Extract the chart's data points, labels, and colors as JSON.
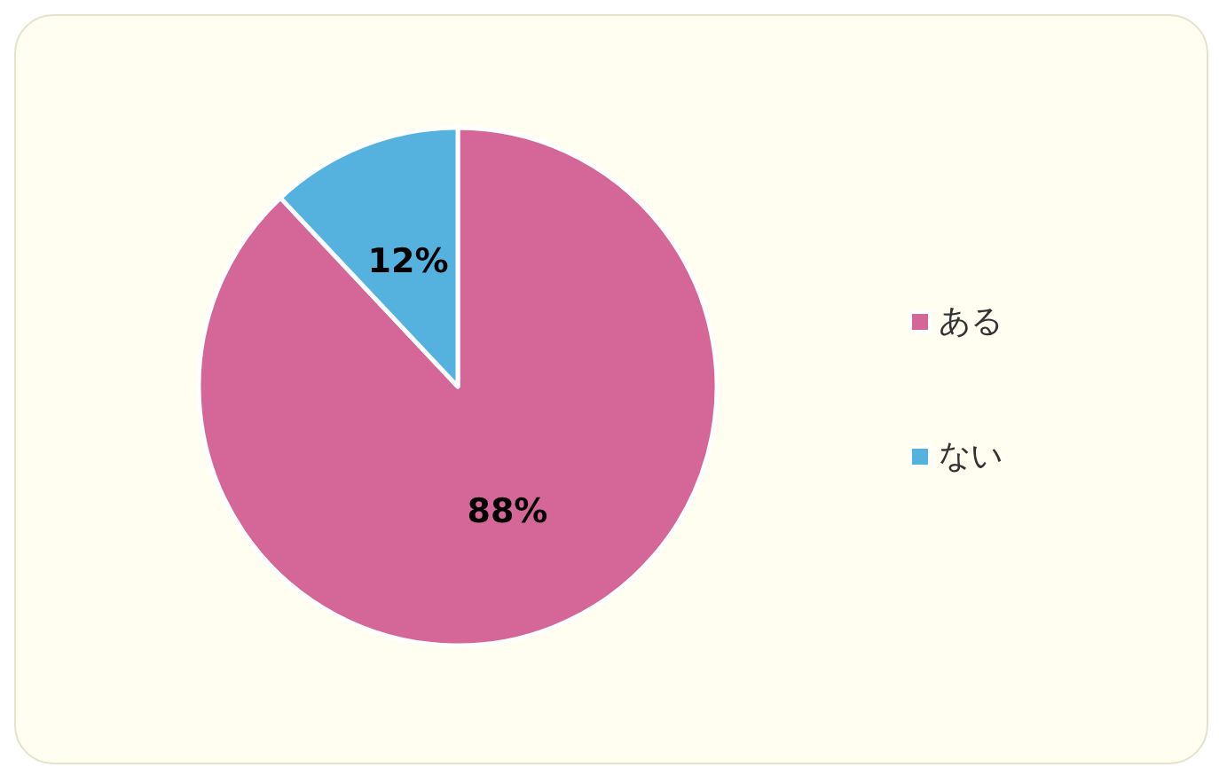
{
  "chart_data": {
    "type": "pie",
    "categories": [
      "ある",
      "ない"
    ],
    "values": [
      88,
      12
    ],
    "colors": [
      "#d46797",
      "#55b2df"
    ],
    "value_labels": [
      "88%",
      "12%"
    ],
    "legend": "right"
  }
}
